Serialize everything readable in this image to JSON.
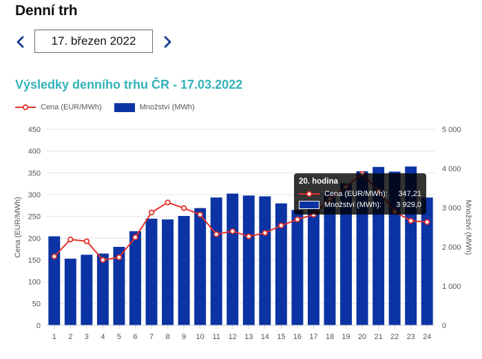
{
  "page": {
    "title": "Denní trh",
    "date_value": "17. březen 2022",
    "subtitle": "Výsledky denního trhu ČR - 17.03.2022"
  },
  "colors": {
    "bar": "#0b33a3",
    "line": "#e3322b",
    "subtitle": "#33b2b8",
    "nav": "#1c3f94"
  },
  "icons": {
    "prev": "chevron-left",
    "next": "chevron-right"
  },
  "legend": {
    "price": "Cena (EUR/MWh)",
    "volume": "Množství (MWh)"
  },
  "tooltip": {
    "title": "20. hodina",
    "price_label": "Cena (EUR/MWh):",
    "price_value": "347,21",
    "volume_label": "Množství (MWh):",
    "volume_value": "3 929,0"
  },
  "chart_data": {
    "type": "bar+line",
    "categories": [
      "1",
      "2",
      "3",
      "4",
      "5",
      "6",
      "7",
      "8",
      "9",
      "10",
      "11",
      "12",
      "13",
      "14",
      "15",
      "16",
      "17",
      "18",
      "19",
      "20",
      "21",
      "22",
      "23",
      "24"
    ],
    "series": [
      {
        "name": "Množství (MWh)",
        "type": "bar",
        "axis": "right",
        "values": [
          2270,
          1700,
          1800,
          1830,
          2000,
          2400,
          2720,
          2700,
          2790,
          2990,
          3260,
          3360,
          3310,
          3290,
          3110,
          2940,
          3000,
          3400,
          3620,
          3929,
          4040,
          3920,
          4050,
          3260
        ]
      },
      {
        "name": "Cena (EUR/MWh)",
        "type": "line",
        "axis": "left",
        "values": [
          158,
          197,
          193,
          150,
          156,
          202,
          259,
          282,
          269,
          254,
          209,
          216,
          204,
          212,
          229,
          243,
          254,
          290,
          318,
          347.21,
          309,
          261,
          240,
          237
        ]
      }
    ],
    "y_left": {
      "label": "Cena (EUR/MWh)",
      "min": 0,
      "max": 450,
      "ticks": [
        "0",
        "50",
        "100",
        "150",
        "200",
        "250",
        "300",
        "350",
        "400",
        "450"
      ]
    },
    "y_right": {
      "label": "Množství (MWh)",
      "min": 0,
      "max": 5000,
      "ticks": [
        "0",
        "1 000",
        "2 000",
        "3 000",
        "4 000",
        "5 000"
      ]
    },
    "grid": true,
    "legend_position": "top-left"
  }
}
